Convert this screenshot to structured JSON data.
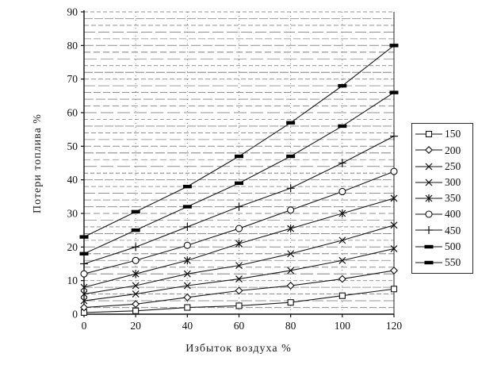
{
  "chart_data": {
    "type": "line",
    "title": "",
    "xlabel": "Избыток воздуха  %",
    "ylabel": "Потери топлива %",
    "x": [
      0,
      20,
      40,
      60,
      80,
      100,
      120
    ],
    "xlim": [
      0,
      120
    ],
    "ylim": [
      0,
      90
    ],
    "x_tick_step": 20,
    "y_major_step": 10,
    "y_minor_step": 2,
    "grid": "horizontal minor lines every 2 units (broken photocopy style), vertical dotted lines at each x tick",
    "legend_position": "right",
    "line_color": "#1b1b1b",
    "series": [
      {
        "name": "150",
        "marker": "square",
        "values": [
          0.5,
          1,
          2,
          2.5,
          3.5,
          5.5,
          7.5
        ]
      },
      {
        "name": "200",
        "marker": "diamond",
        "values": [
          2,
          3,
          5,
          7,
          8.5,
          10.5,
          13
        ]
      },
      {
        "name": "250",
        "marker": "x",
        "values": [
          4,
          6,
          8.5,
          10.5,
          13,
          16,
          19.5
        ]
      },
      {
        "name": "300",
        "marker": "x",
        "values": [
          6,
          8.5,
          12,
          14.5,
          18,
          22,
          26.5
        ]
      },
      {
        "name": "350",
        "marker": "star",
        "values": [
          8,
          12,
          16,
          21,
          25.5,
          30,
          34.5
        ]
      },
      {
        "name": "400",
        "marker": "circle",
        "values": [
          12,
          16,
          20.5,
          25.5,
          31,
          36.5,
          42.5
        ]
      },
      {
        "name": "450",
        "marker": "plus",
        "values": [
          15,
          20,
          26,
          32,
          37.5,
          45,
          53
        ]
      },
      {
        "name": "500",
        "marker": "dash",
        "values": [
          18,
          25,
          32,
          39,
          47,
          56,
          66
        ]
      },
      {
        "name": "550",
        "marker": "dash",
        "values": [
          23,
          30.5,
          38,
          47,
          57,
          68,
          80
        ]
      }
    ]
  },
  "axes": {
    "x_tick_labels": [
      "0",
      "20",
      "40",
      "60",
      "80",
      "100",
      "120"
    ],
    "y_tick_labels": [
      "0",
      "10",
      "20",
      "30",
      "40",
      "50",
      "60",
      "70",
      "80",
      "90"
    ]
  }
}
